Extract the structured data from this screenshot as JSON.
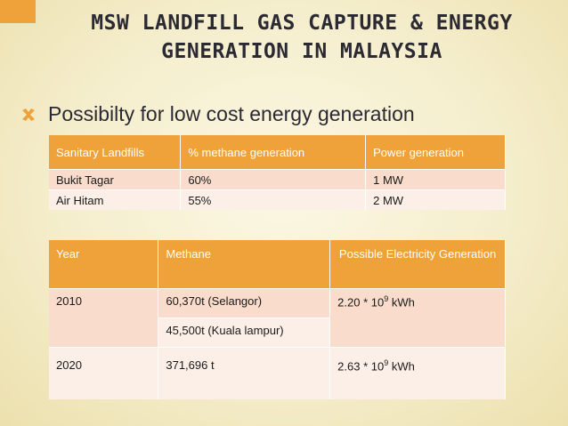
{
  "slide": {
    "title_line1": "MSW LANDFILL GAS CAPTURE & ENERGY",
    "title_line2": "GENERATION IN MALAYSIA",
    "bullet_text": "Possibilty for low cost energy generation",
    "bullet_icon": "x-mark-icon",
    "accent_color": "#f0a23a"
  },
  "table1": {
    "headers": [
      "Sanitary Landfills",
      "% methane generation",
      "Power  generation"
    ],
    "rows": [
      [
        "Bukit Tagar",
        "60%",
        "1 MW"
      ],
      [
        "Air Hitam",
        "55%",
        "2 MW"
      ]
    ]
  },
  "table2": {
    "headers": [
      "Year",
      "Methane",
      "Possible Electricity Generation"
    ],
    "rows": [
      {
        "year": "2010",
        "methane": [
          "60,370t (Selangor)",
          "45,500t (Kuala lampur)"
        ],
        "elec_base": "2.20 * 10",
        "elec_exp": "9",
        "elec_unit": " kWh"
      },
      {
        "year": "2020",
        "methane": [
          "371,696 t"
        ],
        "elec_base": "2.63 * 10",
        "elec_exp": "9",
        "elec_unit": " kWh"
      }
    ]
  }
}
